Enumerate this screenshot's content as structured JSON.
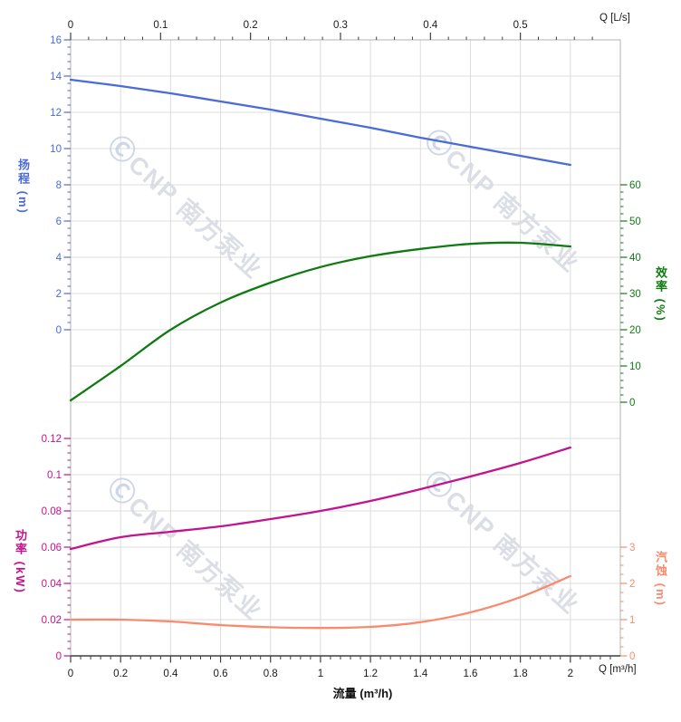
{
  "watermark": {
    "logo_glyph": "Ⓒ",
    "text": "CNP 南方泵业",
    "color": "#d9dbe3",
    "logo_color": "#c9d3e6"
  },
  "chart_data": {
    "type": "line",
    "title": "",
    "xlabel": "流量 (m³/h)",
    "x_unit": "m³/h",
    "x_range": [
      0,
      2.2
    ],
    "grid": true,
    "legend": false,
    "x": [
      0,
      0.2,
      0.4,
      0.6,
      0.8,
      1,
      1.2,
      1.4,
      1.6,
      1.8,
      2
    ],
    "series": [
      {
        "name": "扬程",
        "unit": "m",
        "axis": "head",
        "color": "#4a6bd8",
        "values": [
          13.8,
          13.45,
          13.05,
          12.6,
          12.15,
          11.65,
          11.15,
          10.6,
          10.1,
          9.6,
          9.1
        ]
      },
      {
        "name": "效率",
        "unit": "%",
        "axis": "efficiency",
        "color": "#0e7b10",
        "values": [
          0.5,
          10,
          20,
          27.5,
          33,
          37.3,
          40.3,
          42.3,
          43.7,
          44,
          43
        ]
      },
      {
        "name": "功率",
        "unit": "kW",
        "axis": "power",
        "color": "#c3138e",
        "values": [
          0.059,
          0.0655,
          0.0685,
          0.0715,
          0.0755,
          0.08,
          0.0855,
          0.092,
          0.099,
          0.1065,
          0.115
        ]
      },
      {
        "name": "汽蚀",
        "unit": "m",
        "axis": "npsh",
        "color": "#f98a6e",
        "values": [
          1.0,
          1.0,
          0.95,
          0.85,
          0.79,
          0.77,
          0.8,
          0.93,
          1.2,
          1.62,
          2.2
        ]
      }
    ],
    "axes": {
      "top": {
        "label": "Q [L/s]",
        "ticks": [
          "0",
          "0.1",
          "0.2",
          "0.3",
          "0.4",
          "0.5"
        ],
        "range_Ls": [
          0,
          0.61
        ],
        "color": "#1a1a1a"
      },
      "bottom": {
        "label": "Q [m³/h]",
        "title": "流量 (m³/h)",
        "ticks": [
          "0",
          "0.2",
          "0.4",
          "0.6",
          "0.8",
          "1",
          "1.2",
          "1.4",
          "1.6",
          "1.8",
          "2"
        ],
        "range": [
          0,
          2.2
        ],
        "color": "#1a1a1a"
      },
      "head": {
        "title": "扬程 (m)",
        "ticks": [
          "16",
          "14",
          "12",
          "10",
          "8",
          "6",
          "4",
          "2",
          "0"
        ],
        "range": [
          0,
          16
        ],
        "color": "#4a6bd8"
      },
      "efficiency": {
        "title": "效率 (%)",
        "ticks": [
          "60",
          "50",
          "40",
          "30",
          "20",
          "10",
          "0"
        ],
        "range": [
          0,
          60
        ],
        "color": "#0e7b10"
      },
      "power": {
        "title": "功率 (kW)",
        "ticks": [
          "0.12",
          "0.1",
          "0.08",
          "0.06",
          "0.04",
          "0.02",
          "0"
        ],
        "range": [
          0,
          0.12
        ],
        "color": "#c3138e"
      },
      "npsh": {
        "title": "汽蚀 (m)",
        "ticks": [
          "3",
          "2",
          "1",
          "0"
        ],
        "range": [
          0,
          3
        ],
        "color": "#f98a6e"
      }
    }
  }
}
